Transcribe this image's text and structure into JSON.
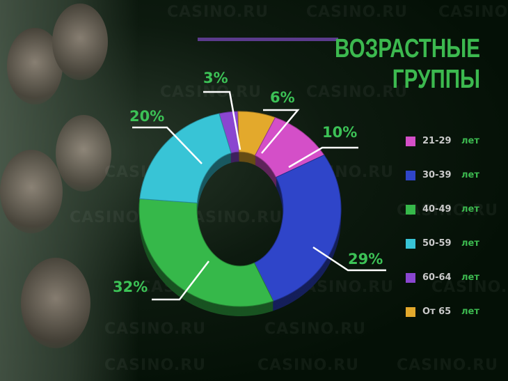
{
  "title_line1": "ВОЗРАСТНЫЕ",
  "title_line2": "ГРУППЫ",
  "watermark": "CASINO.RU",
  "unit_word": "лет",
  "chart_data": {
    "type": "pie",
    "variant": "donut-3d",
    "title": "ВОЗРАСТНЫЕ ГРУППЫ",
    "categories": [
      "21-29",
      "30-39",
      "40-49",
      "50-59",
      "60-64",
      "От 65"
    ],
    "values": [
      10,
      29,
      32,
      20,
      3,
      6
    ],
    "labels": [
      "10%",
      "29%",
      "32%",
      "20%",
      "3%",
      "6%"
    ],
    "colors": [
      "#d44fc8",
      "#2f45c9",
      "#36b84a",
      "#38c4d6",
      "#8a46d0",
      "#e3a92c"
    ],
    "legend": "right"
  }
}
